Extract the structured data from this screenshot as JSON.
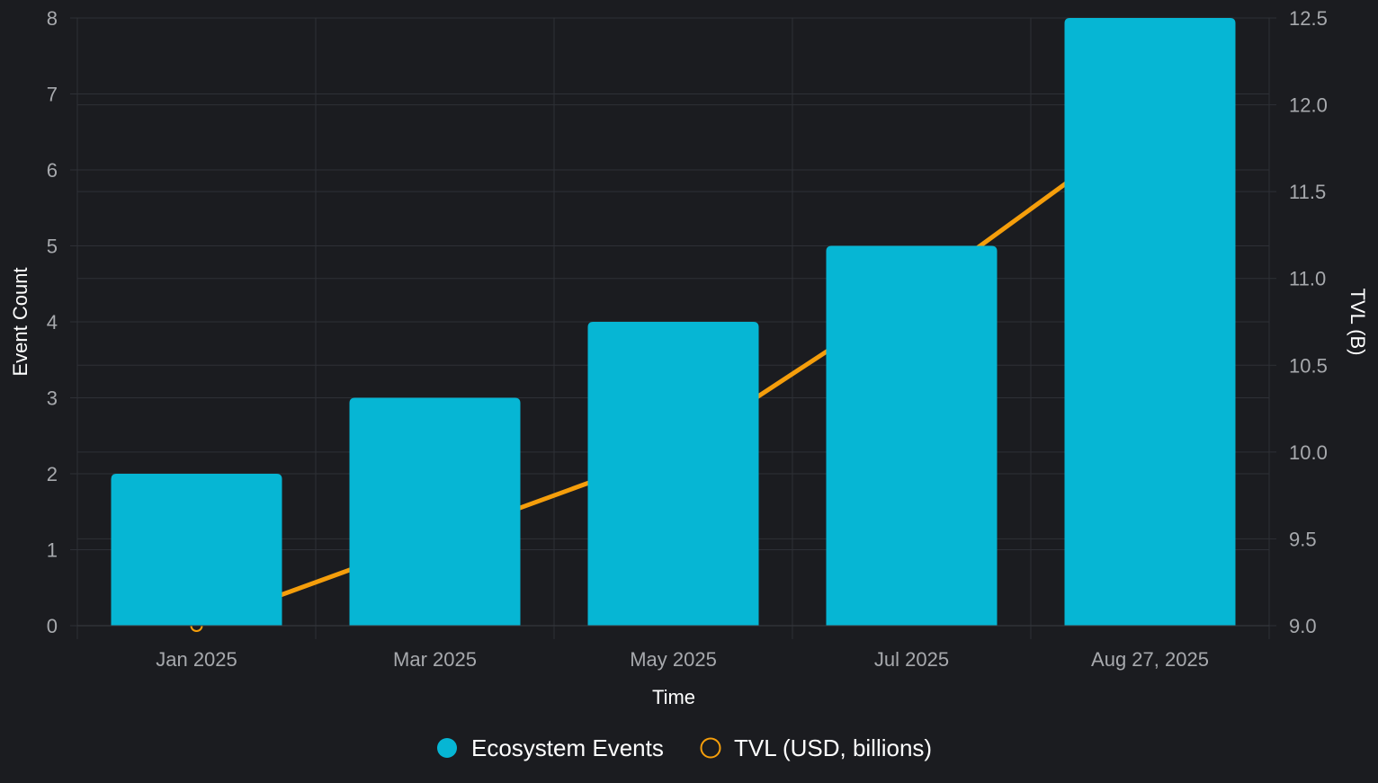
{
  "chart_data": {
    "type": "bar",
    "categories": [
      "Jan 2025",
      "Mar 2025",
      "May 2025",
      "Jul 2025",
      "Aug 27, 2025"
    ],
    "series": [
      {
        "name": "Ecosystem Events",
        "kind": "bar",
        "axis": "left",
        "color": "#06b6d4",
        "values": [
          2,
          3,
          4,
          5,
          8
        ]
      },
      {
        "name": "TVL (USD, billions)",
        "kind": "line",
        "axis": "right",
        "color": "#f59e0b",
        "values": [
          9.0,
          9.5,
          10.0,
          10.9,
          11.9
        ]
      }
    ],
    "xlabel": "Time",
    "ylabel": "Event Count",
    "ylabel_right": "TVL (B)",
    "ylim": [
      0,
      8
    ],
    "ylim_right": [
      9.0,
      12.5
    ],
    "yticks": [
      "0",
      "1",
      "2",
      "3",
      "4",
      "5",
      "6",
      "7",
      "8"
    ],
    "yticks_right": [
      "9.0",
      "9.5",
      "10.0",
      "10.5",
      "11.0",
      "11.5",
      "12.0",
      "12.5"
    ],
    "grid": true,
    "legend_position": "bottom-center",
    "background": "#1b1c20",
    "grid_color": "#2e3036"
  }
}
